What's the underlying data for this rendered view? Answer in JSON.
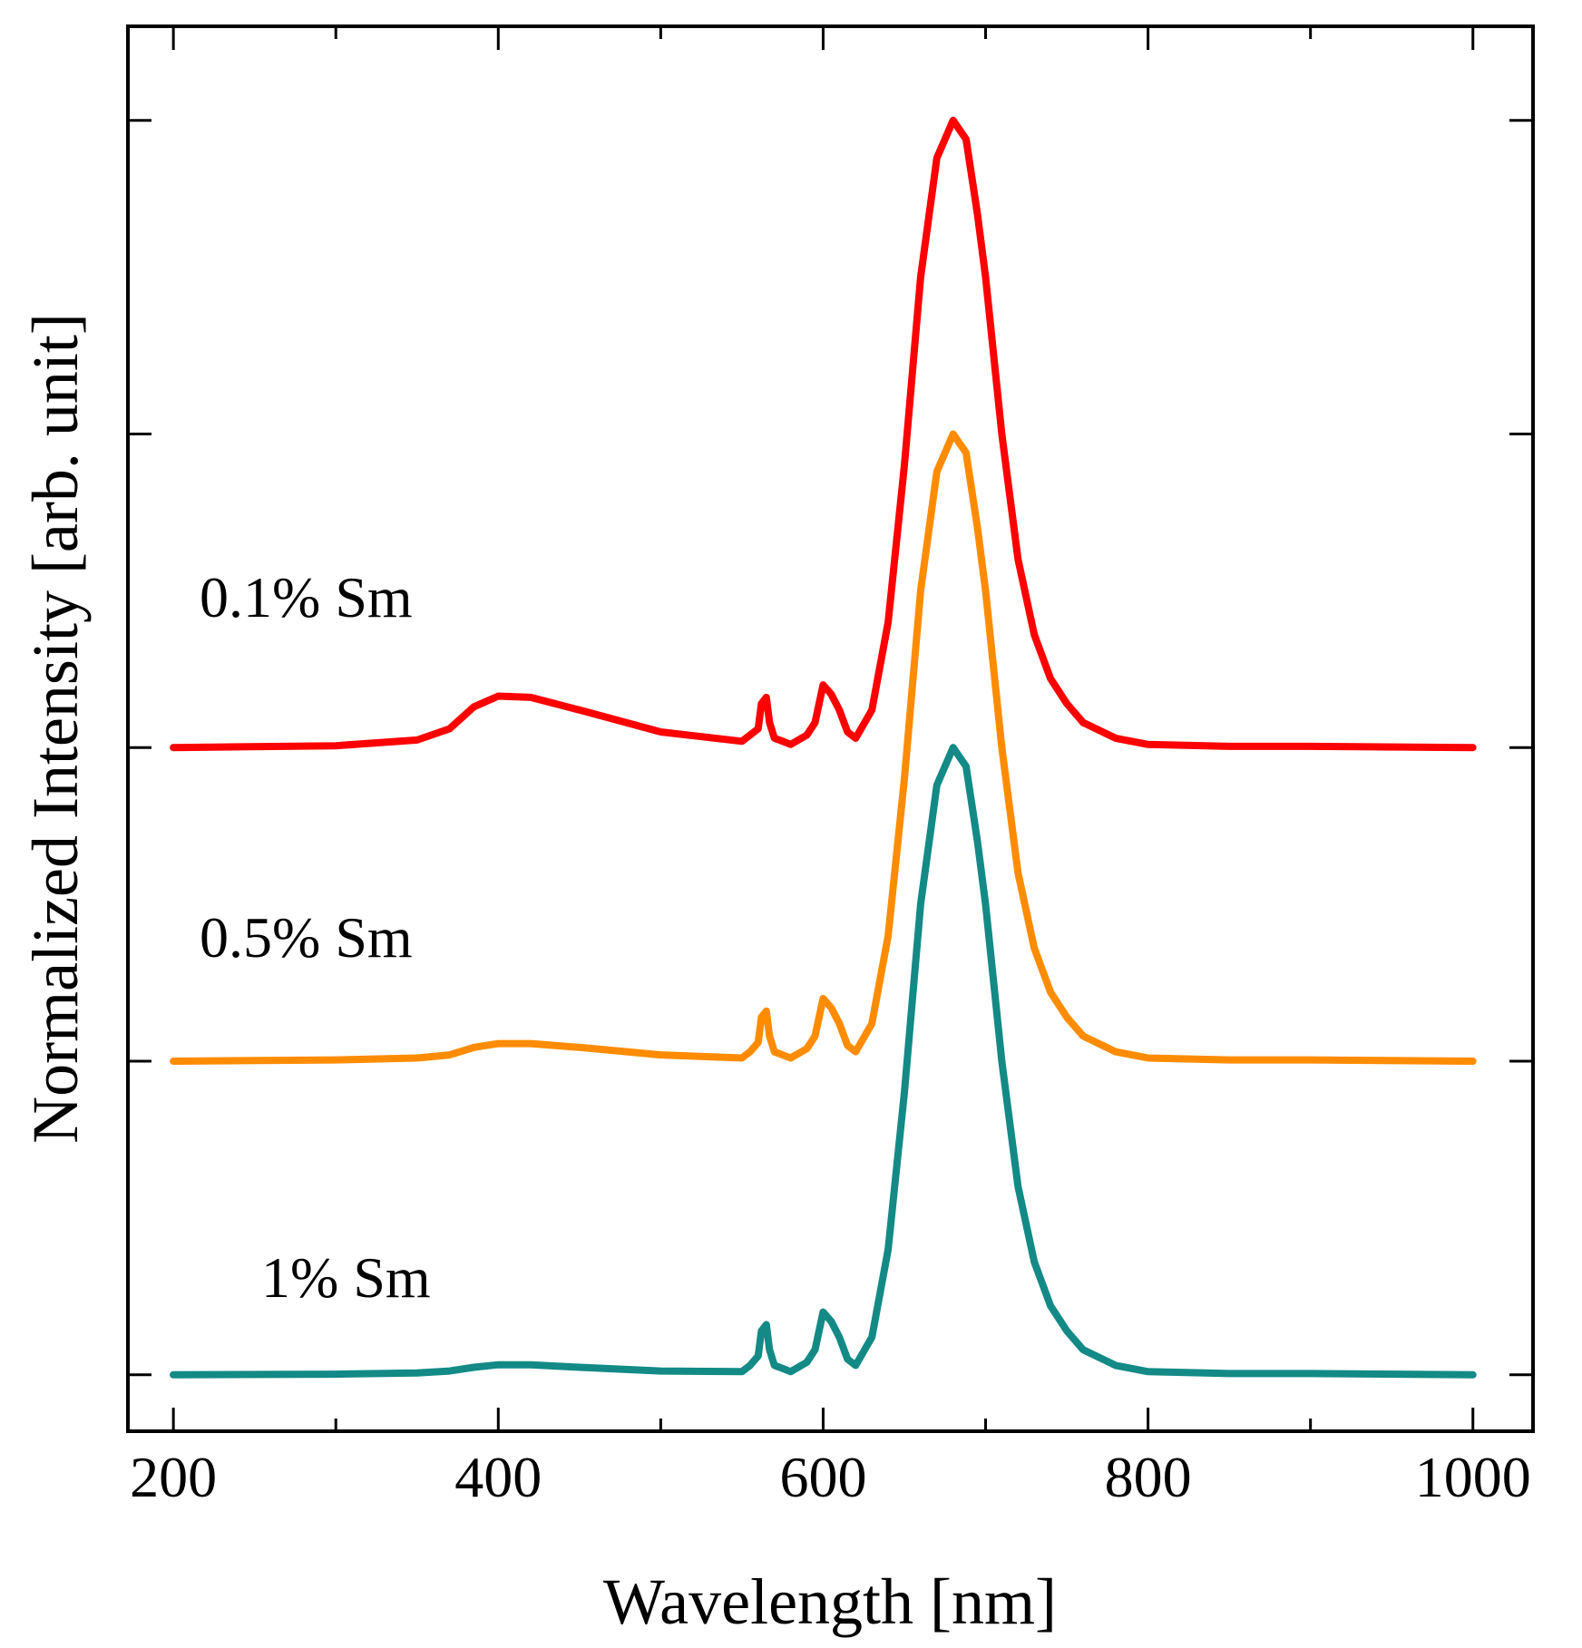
{
  "chart_data": {
    "type": "line",
    "xlabel": "Wavelength [nm]",
    "ylabel": "Normalized Intensity [arb. unit]",
    "xlim": [
      172,
      1037
    ],
    "ylim": [
      -0.09,
      2.15
    ],
    "x_ticks": [
      200,
      400,
      600,
      800,
      1000
    ],
    "x_minor_ticks": [
      300,
      500,
      700,
      900
    ],
    "y_ticks": [
      0,
      0.5,
      1.0,
      1.5,
      2.0
    ],
    "y_tick_labels_shown": false,
    "grid": false,
    "series": [
      {
        "name": "0.1% Sm",
        "color": "#ff0000",
        "offset": 1.0,
        "x": [
          200,
          300,
          350,
          370,
          385,
          400,
          420,
          450,
          500,
          550,
          555,
          560,
          562,
          565,
          567,
          570,
          575,
          580,
          590,
          595,
          600,
          605,
          610,
          615,
          620,
          630,
          640,
          650,
          660,
          670,
          680,
          688,
          695,
          700,
          710,
          720,
          730,
          740,
          750,
          760,
          780,
          800,
          850,
          900,
          1000
        ],
        "y": [
          0,
          0.003,
          0.012,
          0.03,
          0.065,
          0.082,
          0.08,
          0.06,
          0.025,
          0.01,
          0.02,
          0.03,
          0.07,
          0.08,
          0.04,
          0.015,
          0.01,
          0.005,
          0.02,
          0.04,
          0.1,
          0.085,
          0.06,
          0.025,
          0.015,
          0.06,
          0.2,
          0.45,
          0.75,
          0.94,
          1.0,
          0.97,
          0.85,
          0.75,
          0.5,
          0.3,
          0.18,
          0.11,
          0.07,
          0.04,
          0.015,
          0.005,
          0.002,
          0.002,
          0
        ]
      },
      {
        "name": "0.5% Sm",
        "color": "#ff8c00",
        "offset": 0.5,
        "x": [
          200,
          300,
          350,
          370,
          385,
          400,
          420,
          450,
          500,
          550,
          555,
          560,
          562,
          565,
          567,
          570,
          575,
          580,
          590,
          595,
          600,
          605,
          610,
          615,
          620,
          630,
          640,
          650,
          660,
          670,
          680,
          688,
          695,
          700,
          710,
          720,
          730,
          740,
          750,
          760,
          780,
          800,
          850,
          900,
          1000
        ],
        "y": [
          0,
          0.002,
          0.005,
          0.01,
          0.022,
          0.028,
          0.028,
          0.022,
          0.01,
          0.005,
          0.015,
          0.03,
          0.07,
          0.08,
          0.04,
          0.015,
          0.01,
          0.005,
          0.02,
          0.04,
          0.1,
          0.085,
          0.06,
          0.025,
          0.015,
          0.06,
          0.2,
          0.45,
          0.75,
          0.94,
          1.0,
          0.97,
          0.85,
          0.75,
          0.5,
          0.3,
          0.18,
          0.11,
          0.07,
          0.04,
          0.015,
          0.005,
          0.002,
          0.002,
          0
        ]
      },
      {
        "name": "1% Sm",
        "color": "#138a85",
        "offset": 0.0,
        "x": [
          200,
          300,
          350,
          370,
          385,
          400,
          420,
          450,
          500,
          550,
          555,
          560,
          562,
          565,
          567,
          570,
          575,
          580,
          590,
          595,
          600,
          605,
          610,
          615,
          620,
          630,
          640,
          650,
          660,
          670,
          680,
          688,
          695,
          700,
          710,
          720,
          730,
          740,
          750,
          760,
          780,
          800,
          850,
          900,
          1000
        ],
        "y": [
          0,
          0.001,
          0.003,
          0.006,
          0.012,
          0.016,
          0.016,
          0.012,
          0.006,
          0.005,
          0.015,
          0.03,
          0.07,
          0.08,
          0.04,
          0.015,
          0.01,
          0.005,
          0.02,
          0.04,
          0.1,
          0.085,
          0.06,
          0.025,
          0.015,
          0.06,
          0.2,
          0.45,
          0.75,
          0.94,
          1.0,
          0.97,
          0.85,
          0.75,
          0.5,
          0.3,
          0.18,
          0.11,
          0.07,
          0.04,
          0.015,
          0.005,
          0.002,
          0.002,
          0
        ]
      }
    ]
  }
}
